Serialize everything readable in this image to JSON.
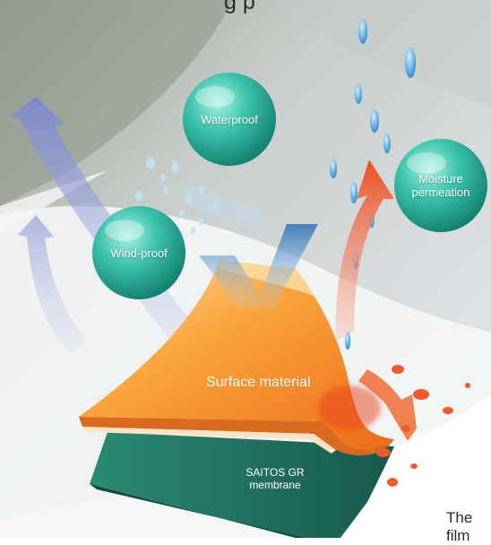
{
  "top_caption": "g   p",
  "bubbles": {
    "waterproof": "Waterproof",
    "moisture_line1": "Moisture",
    "moisture_line2": "permeation",
    "windproof": "Wind-proof"
  },
  "layers": {
    "surface": "Surface material",
    "membrane_line1": "SAITOS GR",
    "membrane_line2": "membrane"
  },
  "bottom_text": {
    "line1": "The",
    "line2": "film"
  },
  "colors": {
    "bubble": "#2db3a0",
    "wind_arrow": "#8b96d4",
    "moisture_arrow": "#f0532a",
    "surface": "#f7a43a",
    "membrane": "#1f6f5f",
    "water_drop": "#4aa6e0"
  }
}
